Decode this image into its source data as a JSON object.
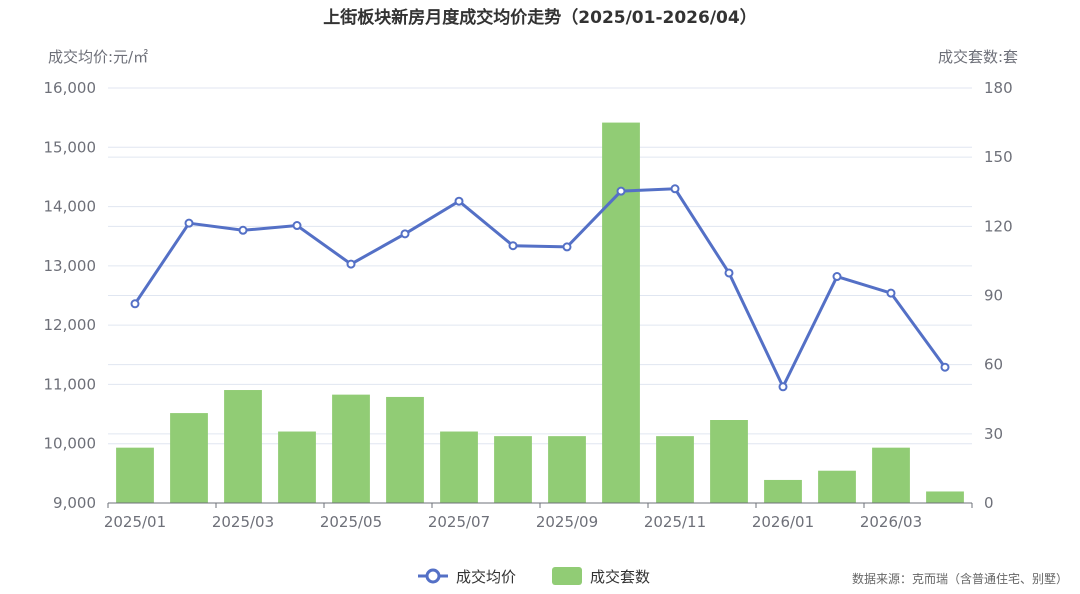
{
  "chart_data": {
    "type": "bar+line",
    "title": "上街板块新房月度成交均价走势（2025/01-2026/04）",
    "categories": [
      "2025/01",
      "2025/02",
      "2025/03",
      "2025/04",
      "2025/05",
      "2025/06",
      "2025/07",
      "2025/08",
      "2025/09",
      "2025/10",
      "2025/11",
      "2025/12",
      "2026/01",
      "2026/02",
      "2026/03",
      "2026/04"
    ],
    "x_tick_labels": [
      "2025/01",
      "2025/03",
      "2025/05",
      "2025/07",
      "2025/09",
      "2025/11",
      "2026/01",
      "2026/03"
    ],
    "y_left": {
      "name": "成交均价:元/㎡",
      "min": 9000,
      "max": 16000,
      "ticks": [
        "9,000",
        "10,000",
        "11,000",
        "12,000",
        "13,000",
        "14,000",
        "15,000",
        "16,000"
      ]
    },
    "y_right": {
      "name": "成交套数:套",
      "min": 0,
      "max": 180,
      "ticks": [
        "0",
        "30",
        "60",
        "90",
        "120",
        "150",
        "180"
      ]
    },
    "grid": true,
    "legend_position": "bottom-center",
    "series": [
      {
        "name": "成交均价",
        "type": "line",
        "axis": "left",
        "color": "#5470c6",
        "values": [
          12360,
          13720,
          13600,
          13680,
          13030,
          13540,
          14090,
          13340,
          13320,
          14260,
          14300,
          12880,
          10960,
          12820,
          12540,
          11290
        ]
      },
      {
        "name": "成交套数",
        "type": "bar",
        "axis": "right",
        "color": "#91cc75",
        "values": [
          24,
          39,
          49,
          31,
          47,
          46,
          31,
          29,
          29,
          165,
          29,
          36,
          10,
          14,
          24,
          5
        ]
      }
    ],
    "source": "数据来源：克而瑞（含普通住宅、别墅）"
  }
}
